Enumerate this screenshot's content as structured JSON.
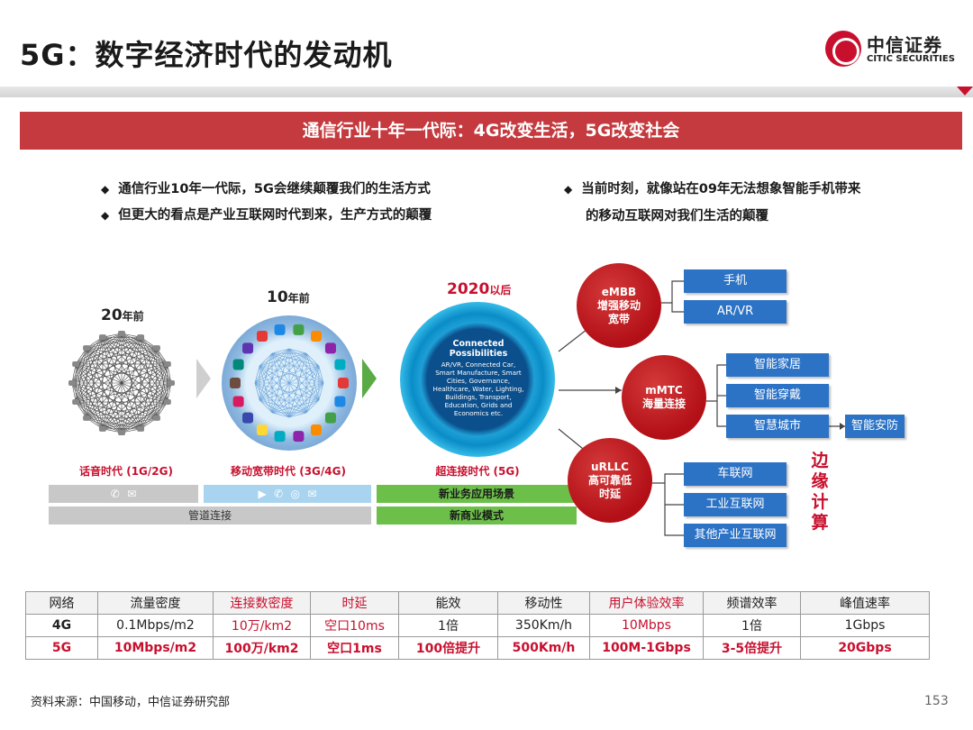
{
  "header": {
    "title": "5G：数字经济时代的发动机",
    "logo_cn": "中信证券",
    "logo_en": "CITIC SECURITIES"
  },
  "banner": "通信行业十年一代际：4G改变生活，5G改变社会",
  "bullets_left": [
    "通信行业10年一代际，5G会继续颠覆我们的生活方式",
    "但更大的看点是产业互联网时代到来，生产方式的颠覆"
  ],
  "bullets_right": {
    "line1": "当前时刻，就像站在09年无法想象智能手机带来",
    "line2": "的移动互联网对我们生活的颠覆"
  },
  "eras": {
    "era1": {
      "num": "20",
      "suffix": "年前",
      "name": "话音时代 (1G/2G)"
    },
    "era2": {
      "num": "10",
      "suffix": "年前",
      "name": "移动宽带时代 (3G/4G)"
    },
    "era3": {
      "num": "2020",
      "suffix": "以后",
      "name": "超连接时代 (5G)"
    }
  },
  "connected": {
    "title": "Connected Possibilities",
    "text": "AR/VR, Connected Car, Smart Manufacture, Smart Cities, Governance, Healthcare, Water, Lighting, Buildings, Transport, Education, Grids and Economics etc."
  },
  "bars": {
    "pipe": "管道连接",
    "new_apps": "新业务应用场景",
    "new_biz": "新商业模式"
  },
  "scenarios": {
    "embb": "eMBB\n增强移动\n宽带",
    "mmtc": "mMTC\n海量连接",
    "urllc": "uRLLC\n高可靠低\n时延"
  },
  "apps": {
    "phone": "手机",
    "arvr": "AR/VR",
    "home": "智能家居",
    "wear": "智能穿戴",
    "city": "智慧城市",
    "security": "智能安防",
    "car": "车联网",
    "iiot": "工业互联网",
    "other": "其他产业互联网"
  },
  "edge_label": "边缘计算",
  "table": {
    "headers": [
      "网络",
      "流量密度",
      "连接数密度",
      "时延",
      "能效",
      "移动性",
      "用户体验效率",
      "频谱效率",
      "峰值速率"
    ],
    "row4g": [
      "4G",
      "0.1Mbps/m2",
      "10万/km2",
      "空口10ms",
      "1倍",
      "350Km/h",
      "10Mbps",
      "1倍",
      "1Gbps"
    ],
    "row5g": [
      "5G",
      "10Mbps/m2",
      "100万/km2",
      "空口1ms",
      "100倍提升",
      "500Km/h",
      "100M-1Gbps",
      "3-5倍提升",
      "20Gbps"
    ]
  },
  "footer": {
    "source": "资料来源：中国移动，中信证券研究部",
    "page": "153"
  }
}
